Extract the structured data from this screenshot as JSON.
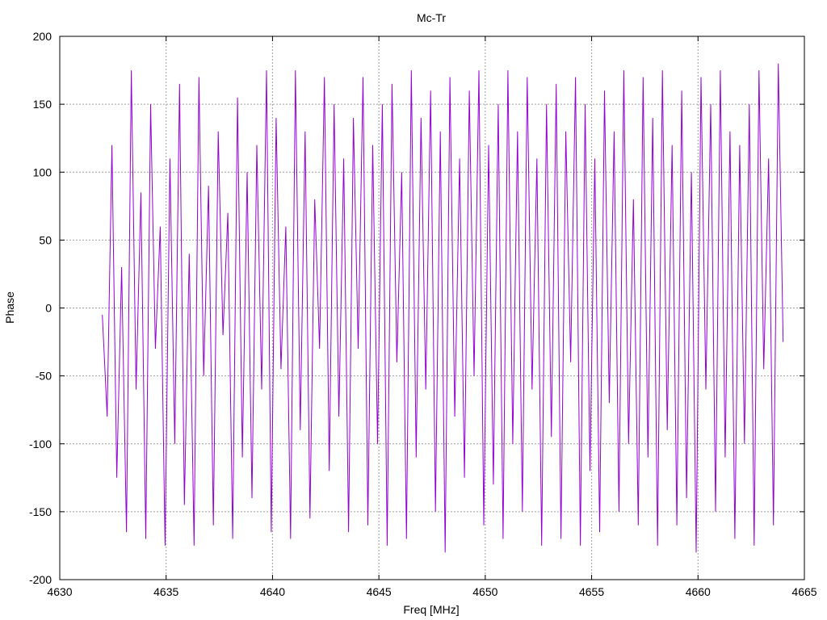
{
  "chart_data": {
    "type": "line",
    "title": "Mc-Tr",
    "xlabel": "Freq [MHz]",
    "ylabel": "Phase",
    "xlim": [
      4630,
      4665
    ],
    "ylim": [
      -200,
      200
    ],
    "xticks": [
      4630,
      4635,
      4640,
      4645,
      4650,
      4655,
      4660,
      4665
    ],
    "yticks": [
      -200,
      -150,
      -100,
      -50,
      0,
      50,
      100,
      150,
      200
    ],
    "grid": true,
    "legend": "none",
    "series": [
      {
        "color": "#9400d3",
        "x_start": 4632.0,
        "x_end": 4664.0,
        "y_range": [
          -180,
          180
        ],
        "description_of_points": "densely sampled phase values oscillating rapidly between about -180 and 180",
        "values": [
          -5,
          -80,
          120,
          -125,
          30,
          -165,
          175,
          -60,
          85,
          -170,
          150,
          -30,
          60,
          -175,
          110,
          -100,
          165,
          -145,
          40,
          -175,
          170,
          -50,
          90,
          -160,
          130,
          -20,
          70,
          -170,
          155,
          -110,
          100,
          -140,
          120,
          -60,
          175,
          -165,
          140,
          -45,
          60,
          -170,
          175,
          -90,
          130,
          -155,
          80,
          -30,
          170,
          -120,
          150,
          -80,
          110,
          -165,
          140,
          -30,
          170,
          -160,
          120,
          -100,
          150,
          -175,
          165,
          -40,
          100,
          -170,
          175,
          -110,
          140,
          -60,
          160,
          -150,
          130,
          -180,
          170,
          -80,
          110,
          -125,
          160,
          -50,
          175,
          -160,
          120,
          -130,
          150,
          -170,
          175,
          -100,
          130,
          -150,
          170,
          -60,
          110,
          -175,
          150,
          -95,
          165,
          -170,
          130,
          -40,
          170,
          -175,
          150,
          -120,
          110,
          -165,
          160,
          -70,
          130,
          -150,
          175,
          -100,
          80,
          -160,
          170,
          -110,
          140,
          -175,
          175,
          -90,
          120,
          -160,
          160,
          -140,
          100,
          -180,
          170,
          -60,
          150,
          -150,
          175,
          -110,
          130,
          -170,
          120,
          -100,
          150,
          -175,
          175,
          -45,
          110,
          -160,
          180,
          -25
        ]
      }
    ]
  }
}
